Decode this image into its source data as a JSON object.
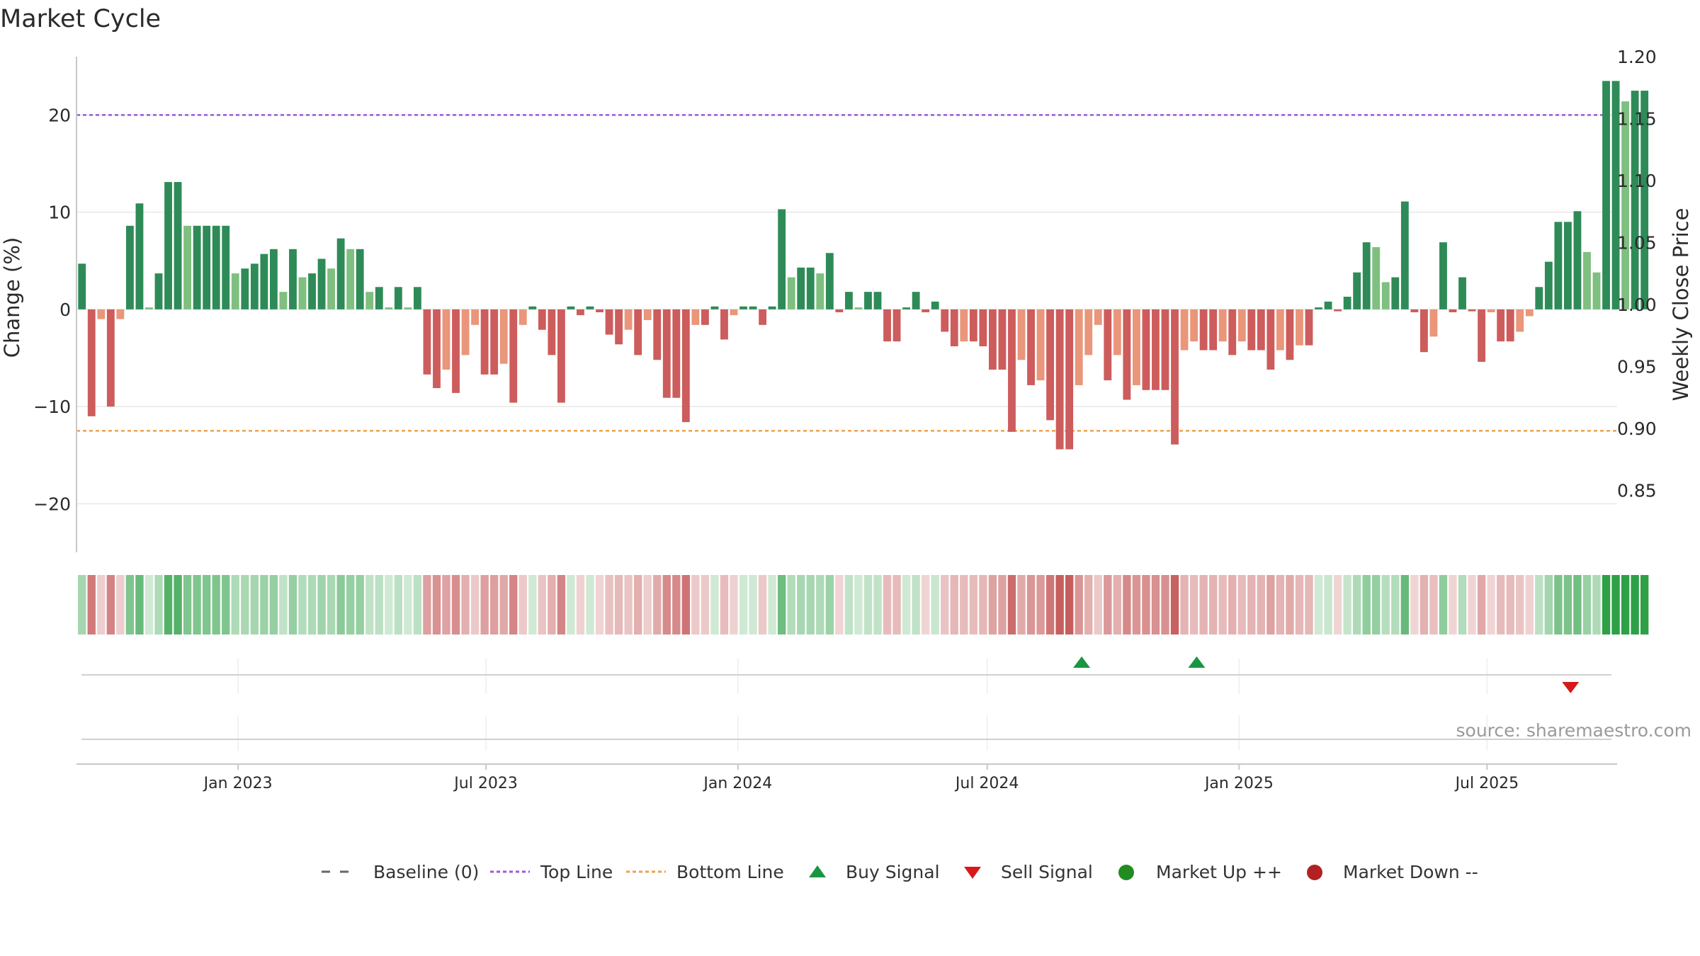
{
  "chart_data": {
    "type": "bar",
    "title": "Market Cycle",
    "ylabel": "Change (%)",
    "y2label": "Weekly Close Price",
    "ylim": [
      -25,
      26
    ],
    "y2lim": [
      0.8,
      1.2
    ],
    "yticks": [
      20,
      10,
      0,
      -10,
      -20
    ],
    "ytick_labels": [
      "20",
      "10",
      "0",
      "−10",
      "−20"
    ],
    "y2ticks": [
      1.2,
      1.15,
      1.1,
      1.05,
      1.0,
      0.95,
      0.9,
      0.85
    ],
    "y2tick_labels": [
      "1.20",
      "1.15",
      "1.10",
      "1.05",
      "1.00",
      "0.95",
      "0.90",
      "0.85"
    ],
    "x_start": "2022-09-05",
    "x_end": "2025-10-04",
    "week_start": "2022-09-09",
    "xticks": [
      "2023-01-01",
      "2023-07-01",
      "2024-01-01",
      "2024-07-01",
      "2025-01-01",
      "2025-07-01"
    ],
    "xtick_labels": [
      "Jan 2023",
      "Jul 2023",
      "Jan 2024",
      "Jul 2024",
      "Jan 2025",
      "Jul 2025"
    ],
    "top_line": 20,
    "bottom_line": -12.5,
    "grid": true,
    "values": [
      4.7,
      -11,
      -1,
      -10,
      -1,
      8.6,
      10.9,
      0.2,
      3.7,
      13.1,
      13.1,
      8.6,
      8.6,
      8.6,
      8.6,
      8.6,
      3.7,
      4.2,
      4.7,
      5.7,
      6.2,
      1.8,
      6.2,
      3.3,
      3.7,
      5.2,
      4.2,
      7.3,
      6.2,
      6.2,
      1.8,
      2.3,
      0.2,
      2.3,
      0.2,
      2.3,
      -6.7,
      -8.1,
      -6.2,
      -8.6,
      -4.7,
      -1.6,
      -6.7,
      -6.7,
      -5.6,
      -9.6,
      -1.6,
      0.3,
      -2.1,
      -4.7,
      -9.6,
      0.3,
      -0.6,
      0.3,
      -0.3,
      -2.6,
      -3.6,
      -2.1,
      -4.7,
      -1.1,
      -5.2,
      -9.1,
      -9.1,
      -11.6,
      -1.6,
      -1.6,
      0.3,
      -3.1,
      -0.6,
      0.3,
      0.3,
      -1.6,
      0.3,
      10.3,
      3.3,
      4.3,
      4.3,
      3.7,
      5.8,
      -0.3,
      1.8,
      0.2,
      1.8,
      1.8,
      -3.3,
      -3.3,
      0.2,
      1.8,
      -0.3,
      0.8,
      -2.3,
      -3.8,
      -3.3,
      -3.3,
      -3.8,
      -6.2,
      -6.2,
      -12.6,
      -5.2,
      -7.8,
      -7.3,
      -11.4,
      -14.4,
      -14.4,
      -7.8,
      -4.7,
      -1.6,
      -7.3,
      -4.7,
      -9.3,
      -7.8,
      -8.3,
      -8.3,
      -8.3,
      -13.9,
      -4.2,
      -3.3,
      -4.2,
      -4.2,
      -3.3,
      -4.7,
      -3.3,
      -4.2,
      -4.2,
      -6.2,
      -4.2,
      -5.2,
      -3.7,
      -3.7,
      0.2,
      0.8,
      -0.2,
      1.3,
      3.8,
      6.9,
      6.4,
      2.8,
      3.3,
      11.1,
      -0.3,
      -4.4,
      -2.8,
      6.9,
      -0.3,
      3.3,
      -0.2,
      -5.4,
      -0.3,
      -3.3,
      -3.3,
      -2.3,
      -0.7,
      2.3,
      4.9,
      9,
      9,
      10.1,
      5.9,
      3.8,
      23.5,
      23.5,
      21.4,
      22.5,
      22.5
    ],
    "buy_signals": [
      "2024-09-08",
      "2024-12-01"
    ],
    "sell_signals": [
      "2025-08-31"
    ],
    "legend_position": "bottom",
    "legend": [
      "Baseline (0)",
      "Top Line",
      "Bottom Line",
      "Buy Signal",
      "Sell Signal",
      "Market Up ++",
      "Market Down --"
    ],
    "colors": {
      "up_strong": "#2e8b57",
      "up_weak": "#7fbf7f",
      "down_strong": "#cd5c5c",
      "down_weak": "#e9967a",
      "top_line": "#9b59d6",
      "bottom_line": "#f0a04b",
      "buy": "#1a9641",
      "sell": "#d7191c",
      "market_up": "#228b22",
      "market_down": "#b22222",
      "baseline": "#666666"
    }
  },
  "source_text": "source: sharemaestro.com"
}
